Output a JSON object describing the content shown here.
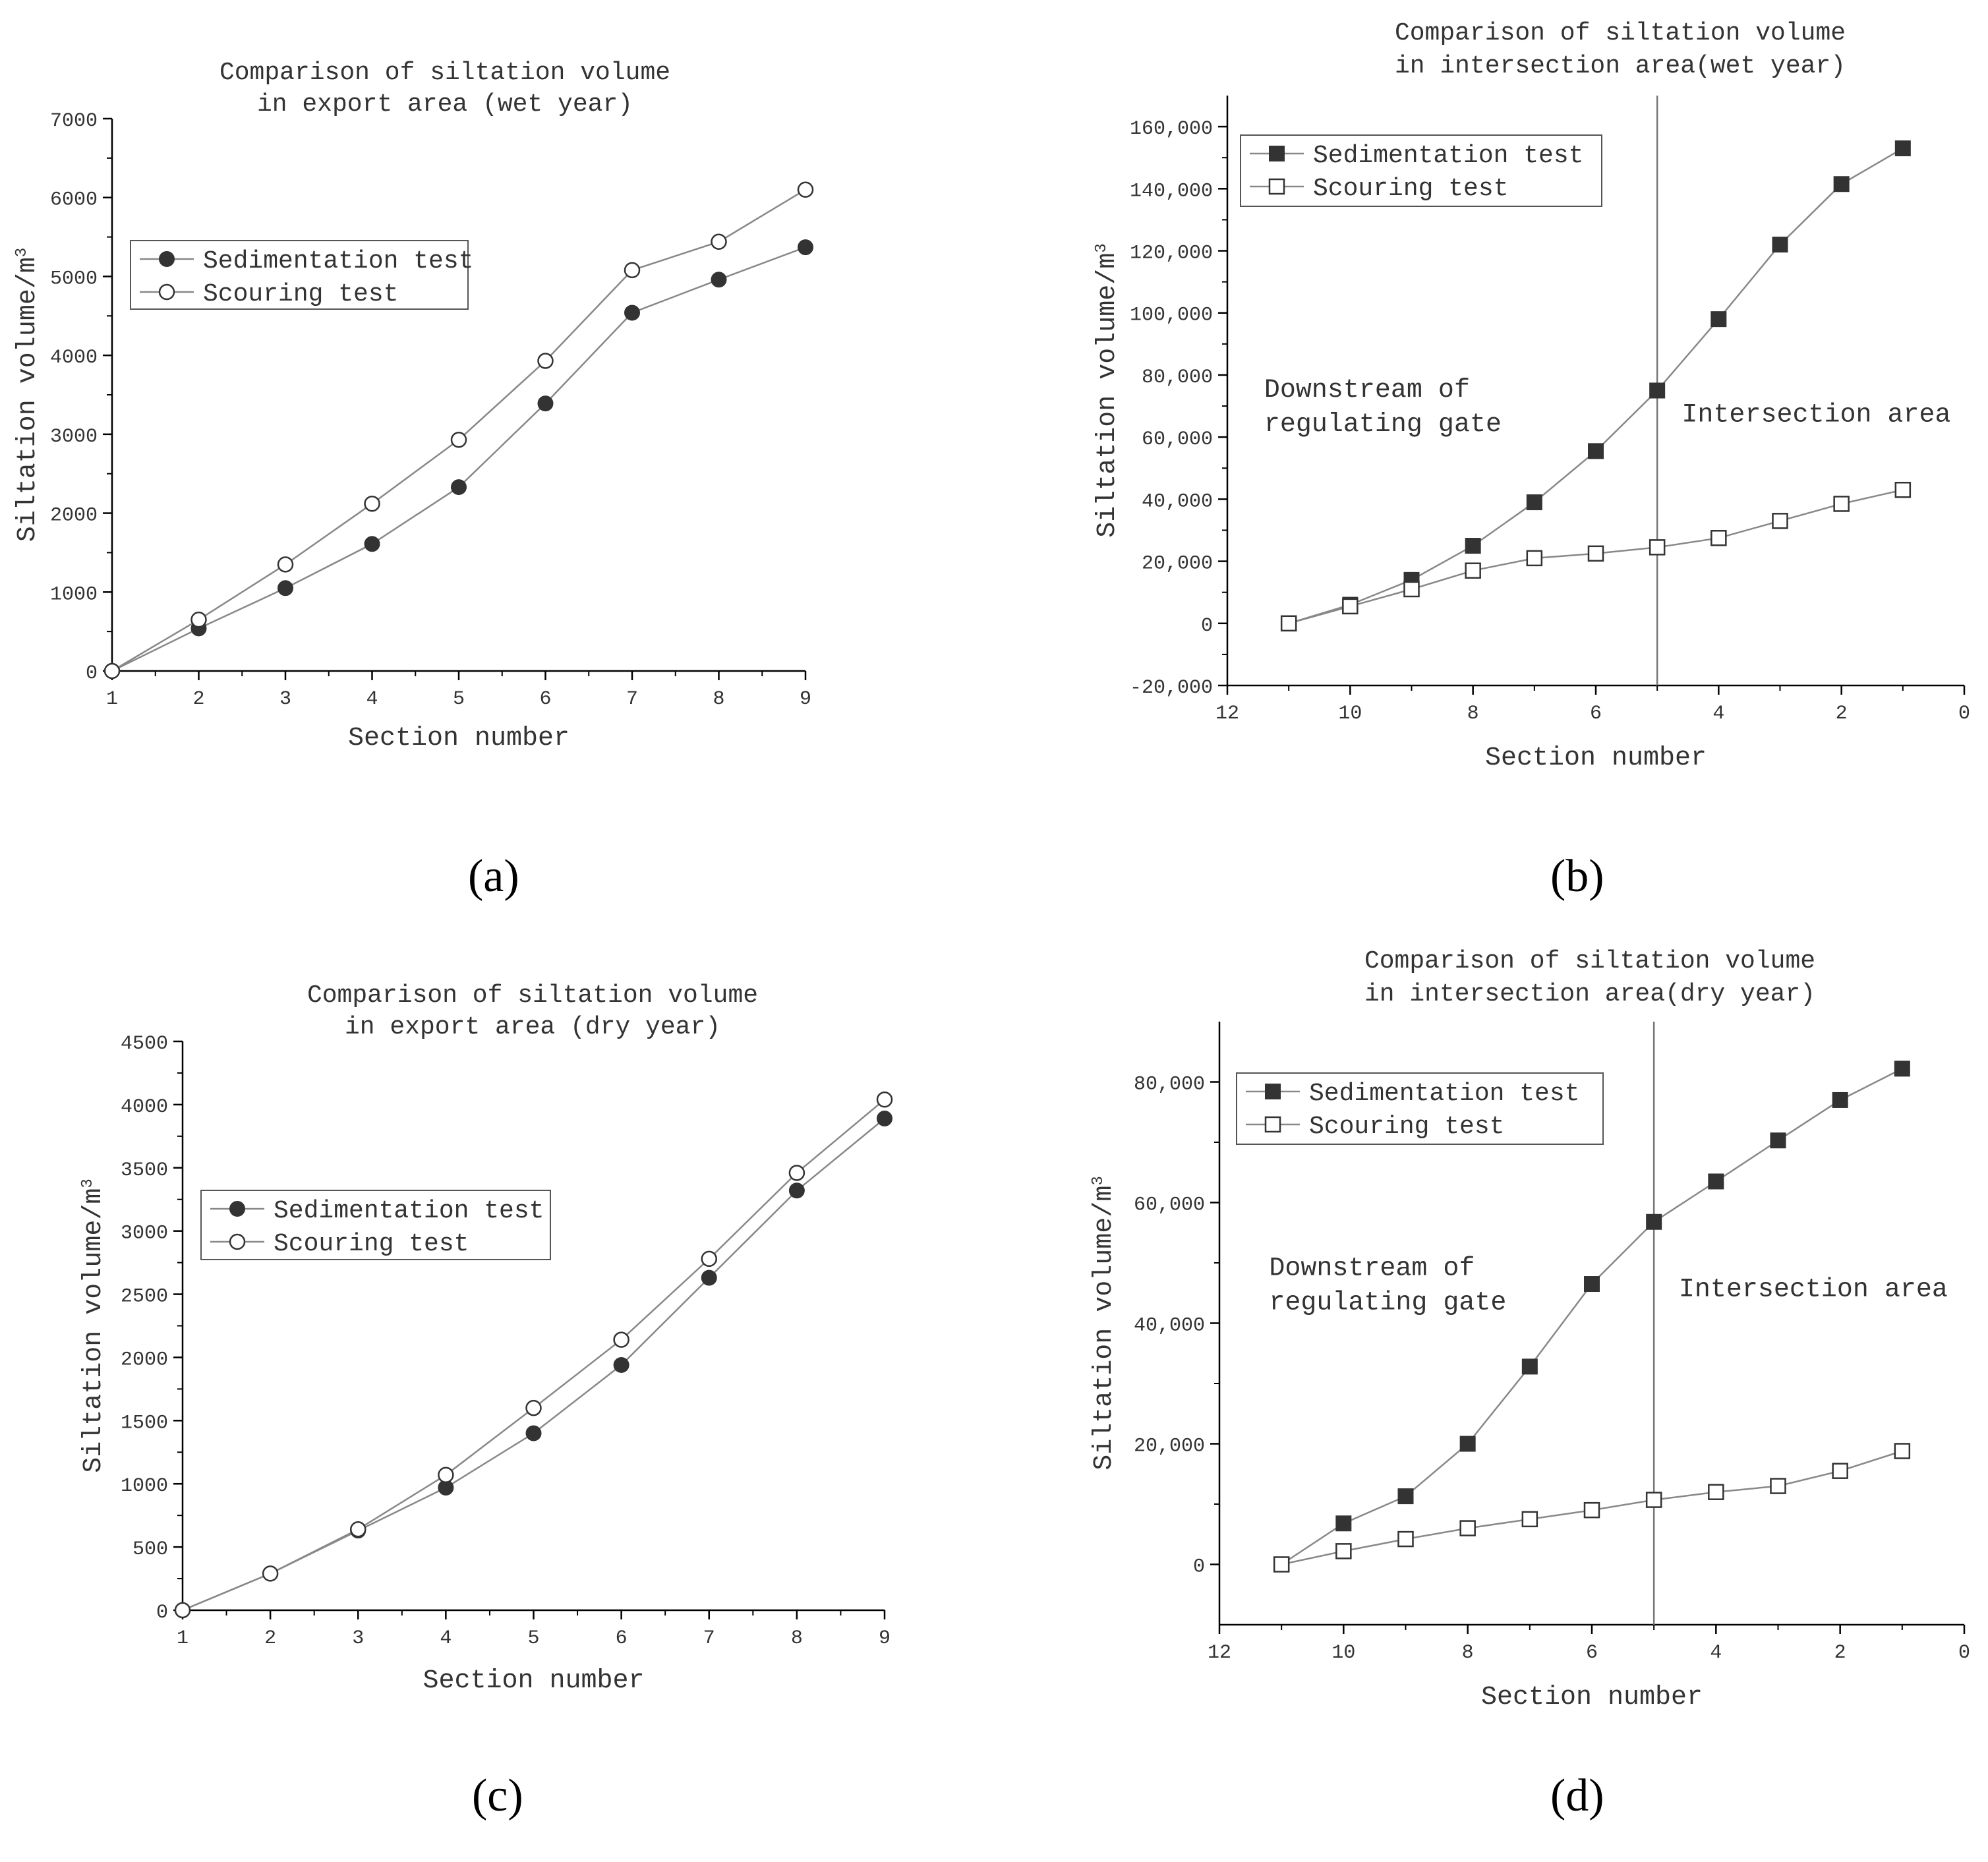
{
  "figure": {
    "panel_labels": [
      "(a)",
      "(b)",
      "(c)",
      "(d)"
    ]
  },
  "colors": {
    "axis": "#000000",
    "line": "#888888",
    "marker_fill": "#333333",
    "marker_edge": "#333333",
    "text": "#333333"
  },
  "chart_data": [
    {
      "type": "line",
      "panel": "(a)",
      "title_lines": [
        "Comparison of siltation volume",
        "in export area (wet year)"
      ],
      "xlabel": "Section number",
      "ylabel_main": "Siltation volume/m",
      "ylabel_sup": "3",
      "xlim": [
        1,
        9
      ],
      "ylim": [
        0,
        7000
      ],
      "xticks": [
        1,
        2,
        3,
        4,
        5,
        6,
        7,
        8,
        9
      ],
      "yticks": [
        0,
        1000,
        2000,
        3000,
        4000,
        5000,
        6000,
        7000
      ],
      "ytick_labels": [
        "0",
        "1000",
        "2000",
        "3000",
        "4000",
        "5000",
        "6000",
        "7000"
      ],
      "x": [
        1,
        2,
        3,
        4,
        5,
        6,
        7,
        8,
        9
      ],
      "series": [
        {
          "name": "Sedimentation test",
          "marker": "filled-circle",
          "values": [
            0,
            540,
            1050,
            1610,
            2330,
            3390,
            4540,
            4960,
            5370
          ]
        },
        {
          "name": "Scouring test",
          "marker": "open-circle",
          "values": [
            0,
            650,
            1350,
            2120,
            2930,
            3930,
            5080,
            5440,
            6100
          ]
        }
      ],
      "legend_position": "upper-left",
      "annotations": [],
      "vline": null,
      "x_reversed": false
    },
    {
      "type": "line",
      "panel": "(b)",
      "title_lines": [
        "Comparison of siltation volume",
        "in intersection area(wet year)"
      ],
      "xlabel": "Section number",
      "ylabel_main": "Siltation volume/m",
      "ylabel_sup": "3",
      "xlim": [
        12,
        0
      ],
      "ylim": [
        -20000,
        170000
      ],
      "xticks": [
        12,
        10,
        8,
        6,
        4,
        2,
        0
      ],
      "yticks": [
        -20000,
        0,
        20000,
        40000,
        60000,
        80000,
        100000,
        120000,
        140000,
        160000
      ],
      "ytick_labels": [
        "-20,000",
        "0",
        "20,000",
        "40,000",
        "60,000",
        "80,000",
        "100,000",
        "120,000",
        "140,000",
        "160,000"
      ],
      "x": [
        11,
        10,
        9,
        8,
        7,
        6,
        5,
        4,
        3,
        2,
        1
      ],
      "series": [
        {
          "name": "Sedimentation test",
          "marker": "filled-square",
          "values": [
            0,
            6000,
            14000,
            25000,
            39000,
            55500,
            75000,
            98000,
            122000,
            141500,
            153000
          ]
        },
        {
          "name": "Scouring test",
          "marker": "open-square",
          "values": [
            0,
            5500,
            11000,
            17000,
            21000,
            22500,
            24500,
            27500,
            33000,
            38500,
            43000
          ]
        }
      ],
      "legend_position": "upper-left",
      "annotations": [
        {
          "lines": [
            "Downstream of",
            "regulating gate"
          ],
          "x": 11.4,
          "y": 73000
        },
        {
          "lines": [
            "Intersection area"
          ],
          "x": 4.6,
          "y": 65000
        }
      ],
      "vline": 5,
      "x_reversed": true
    },
    {
      "type": "line",
      "panel": "(c)",
      "title_lines": [
        "Comparison of siltation volume",
        "in export area (dry year)"
      ],
      "xlabel": "Section number",
      "ylabel_main": "Siltation volume/m",
      "ylabel_sup": "3",
      "xlim": [
        1,
        9
      ],
      "ylim": [
        0,
        4500
      ],
      "xticks": [
        1,
        2,
        3,
        4,
        5,
        6,
        7,
        8,
        9
      ],
      "yticks": [
        0,
        500,
        1000,
        1500,
        2000,
        2500,
        3000,
        3500,
        4000,
        4500
      ],
      "ytick_labels": [
        "0",
        "500",
        "1000",
        "1500",
        "2000",
        "2500",
        "3000",
        "3500",
        "4000",
        "4500"
      ],
      "x": [
        1,
        2,
        3,
        4,
        5,
        6,
        7,
        8,
        9
      ],
      "series": [
        {
          "name": "Sedimentation test",
          "marker": "filled-circle",
          "values": [
            0,
            290,
            630,
            970,
            1400,
            1940,
            2630,
            3320,
            3890
          ]
        },
        {
          "name": "Scouring test",
          "marker": "open-circle",
          "values": [
            0,
            290,
            640,
            1070,
            1600,
            2140,
            2780,
            3460,
            4040
          ]
        }
      ],
      "legend_position": "upper-left",
      "annotations": [],
      "vline": null,
      "x_reversed": false
    },
    {
      "type": "line",
      "panel": "(d)",
      "title_lines": [
        "Comparison of siltation volume",
        "in intersection area(dry year)"
      ],
      "xlabel": "Section number",
      "ylabel_main": "Siltation volume/m",
      "ylabel_sup": "3",
      "xlim": [
        12,
        0
      ],
      "ylim": [
        -10000,
        90000
      ],
      "xticks": [
        12,
        10,
        8,
        6,
        4,
        2,
        0
      ],
      "yticks": [
        0,
        20000,
        40000,
        60000,
        80000
      ],
      "ytick_labels": [
        "0",
        "20,000",
        "40,000",
        "60,000",
        "80,000"
      ],
      "x": [
        11,
        10,
        9,
        8,
        7,
        6,
        5,
        4,
        3,
        2,
        1
      ],
      "series": [
        {
          "name": "Sedimentation test",
          "marker": "filled-square",
          "values": [
            0,
            6800,
            11300,
            20000,
            32800,
            46500,
            56800,
            63500,
            70300,
            77000,
            82200
          ]
        },
        {
          "name": "Scouring test",
          "marker": "open-square",
          "values": [
            0,
            2200,
            4200,
            6000,
            7500,
            9000,
            10700,
            12000,
            13000,
            15500,
            18800
          ]
        }
      ],
      "legend_position": "upper-left",
      "annotations": [
        {
          "lines": [
            "Downstream of",
            "regulating gate"
          ],
          "x": 11.2,
          "y": 48000
        },
        {
          "lines": [
            "Intersection area"
          ],
          "x": 4.6,
          "y": 44500
        }
      ],
      "vline": 5,
      "x_reversed": true
    }
  ]
}
